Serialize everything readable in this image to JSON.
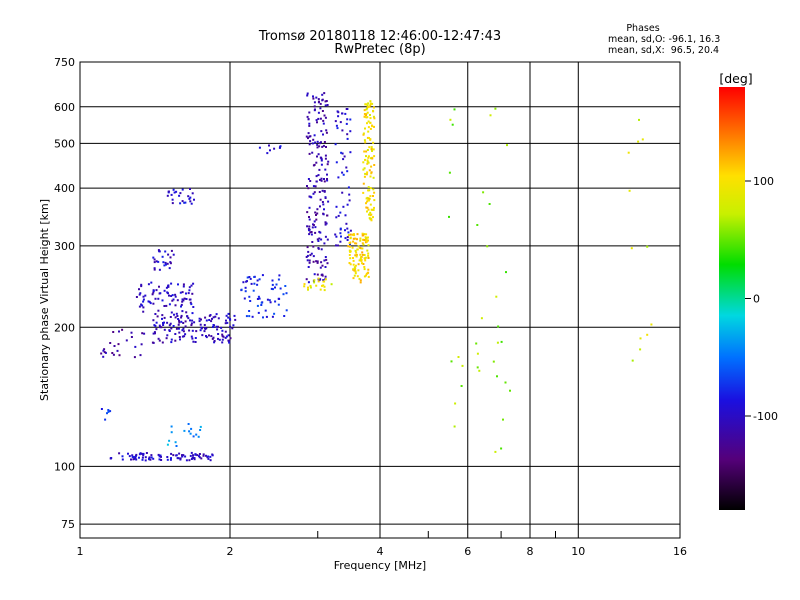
{
  "chart_data": {
    "type": "scatter",
    "title": "Tromsø 20180118 12:46:00-12:47:43",
    "subtitle": "RwPretec (8p)",
    "xlabel": "Frequency [MHz]",
    "ylabel": "Stationary phase Virtual Height [km]",
    "x_scale": "log",
    "y_scale": "log",
    "xlim": [
      1,
      16
    ],
    "ylim": [
      70,
      750
    ],
    "x_ticks": [
      1,
      2,
      4,
      6,
      8,
      10,
      16
    ],
    "x_tick_labels": [
      "1",
      "2",
      "4",
      "6",
      "8",
      "10",
      "16"
    ],
    "x_minor_ticks": [
      3,
      5,
      7,
      9
    ],
    "y_ticks": [
      75,
      100,
      200,
      300,
      400,
      500,
      600,
      750
    ],
    "y_tick_labels": [
      "75",
      "100",
      "200",
      "300",
      "400",
      "500",
      "600",
      "750"
    ],
    "grid": true,
    "info_box": {
      "title": "Phases",
      "line1": "mean, sd,O: -96.1, 16.3",
      "line2": "mean, sd,X:  96.5, 20.4"
    },
    "colorbar": {
      "label": "[deg]",
      "range": [
        -180,
        180
      ],
      "ticks": [
        100,
        0,
        -100
      ],
      "tick_labels": [
        "100",
        "0",
        "-100"
      ]
    },
    "clusters": [
      {
        "f": [
          1.15,
          1.85
        ],
        "h": [
          103,
          107
        ],
        "phase": -100,
        "n": 90
      },
      {
        "f": [
          1.5,
          1.75
        ],
        "h": [
          110,
          125
        ],
        "phase": -40,
        "n": 16
      },
      {
        "f": [
          1.1,
          1.15
        ],
        "h": [
          126,
          135
        ],
        "phase": -80,
        "n": 6
      },
      {
        "f": [
          1.1,
          1.35
        ],
        "h": [
          172,
          200
        ],
        "phase": -115,
        "n": 25
      },
      {
        "f": [
          1.4,
          2.05
        ],
        "h": [
          185,
          215
        ],
        "phase": -105,
        "n": 150
      },
      {
        "f": [
          1.3,
          1.7
        ],
        "h": [
          215,
          250
        ],
        "phase": -100,
        "n": 80
      },
      {
        "f": [
          1.4,
          1.55
        ],
        "h": [
          265,
          295
        ],
        "phase": -100,
        "n": 25
      },
      {
        "f": [
          1.5,
          1.7
        ],
        "h": [
          370,
          400
        ],
        "phase": -95,
        "n": 25
      },
      {
        "f": [
          2.1,
          2.6
        ],
        "h": [
          210,
          260
        ],
        "phase": -80,
        "n": 60
      },
      {
        "f": [
          2.2,
          2.6
        ],
        "h": [
          475,
          495
        ],
        "phase": -100,
        "n": 8
      },
      {
        "f": [
          2.85,
          3.15
        ],
        "h": [
          250,
          650
        ],
        "phase": -110,
        "n": 200
      },
      {
        "f": [
          2.8,
          3.2
        ],
        "h": [
          240,
          255
        ],
        "phase": 90,
        "n": 20
      },
      {
        "f": [
          3.25,
          3.5
        ],
        "h": [
          300,
          600
        ],
        "phase": -95,
        "n": 60
      },
      {
        "f": [
          3.45,
          3.8
        ],
        "h": [
          250,
          320
        ],
        "phase": 105,
        "n": 110
      },
      {
        "f": [
          3.7,
          3.9
        ],
        "h": [
          340,
          620
        ],
        "phase": 100,
        "n": 120
      },
      {
        "f": [
          5.5,
          7.3
        ],
        "h": [
          100,
          660
        ],
        "phase": 60,
        "n": 35
      },
      {
        "f": [
          12.2,
          14.2
        ],
        "h": [
          150,
          580
        ],
        "phase": 80,
        "n": 12
      }
    ]
  }
}
